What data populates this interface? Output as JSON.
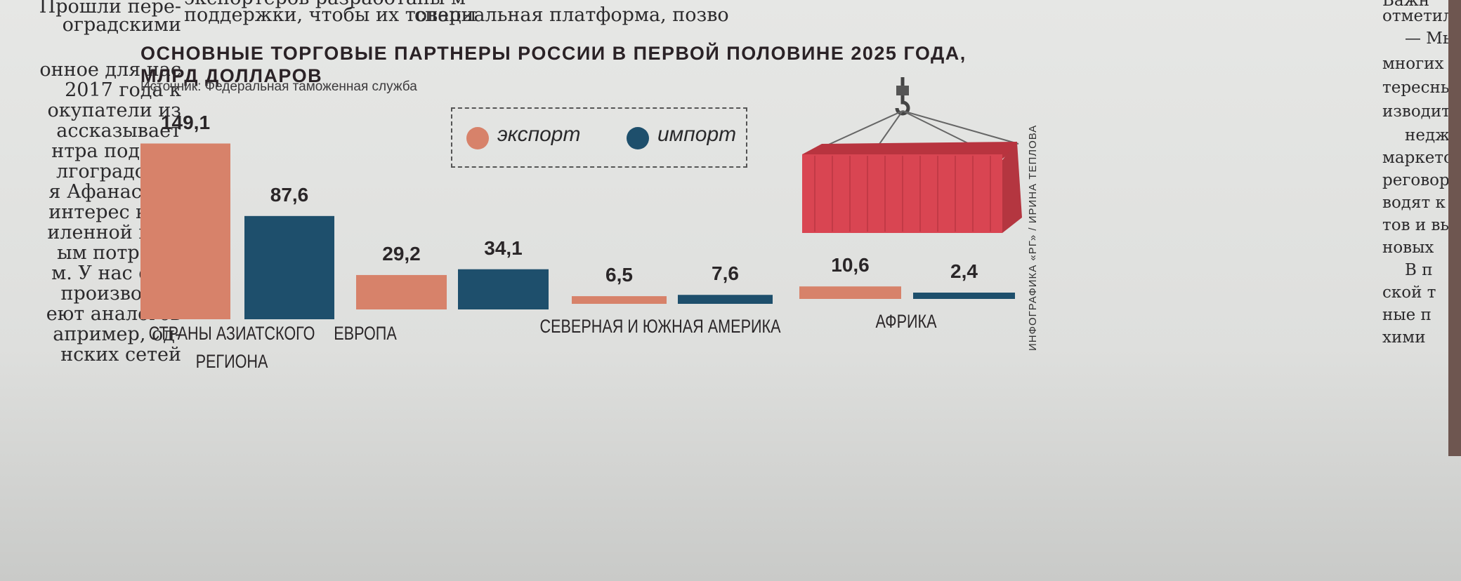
{
  "article_left_lines": [
    "Прошли пере-",
    "оградскими",
    "онное для нас",
    "2017 года к",
    "окупатели из",
    "ассказывает",
    "нтра поддер-",
    "лгоградской",
    "я Афанасова.",
    "интерес к аг-",
    "иленной про-",
    "ым потреби-",
    "м. У нас есть",
    "производст-",
    "еют аналогов",
    "апример, од-",
    "нских сетей"
  ],
  "article_top_lines": [
    "экспортеров разработаны м",
    "поддержки, чтобы их товары",
    "специальная платформа, позво"
  ],
  "article_right_lines": [
    "Важн",
    "отметил",
    "— Мы",
    "многих п",
    "тересны",
    "изводите",
    "неджер",
    "маркето",
    "реговор",
    "водят к",
    "тов и вы",
    "новых",
    "В п",
    "ской т",
    "ные п",
    "хими"
  ],
  "credit": "ИНФОГРАФИКА «РГ» / ИРИНА ТЕПЛОВА",
  "colors": {
    "export": "#d7826a",
    "import": "#1e4f6c",
    "container": "#d94552"
  },
  "chart_data": {
    "type": "bar",
    "title": "ОСНОВНЫЕ ТОРГОВЫЕ ПАРТНЕРЫ РОССИИ В ПЕРВОЙ ПОЛОВИНЕ 2025 ГОДА, МЛРД ДОЛЛАРОВ",
    "title_lines": [
      "ОСНОВНЫЕ ТОРГОВЫЕ ПАРТНЕРЫ РОССИИ В ПЕРВОЙ ПОЛОВИНЕ 2025 ГОДА,",
      "МЛРД ДОЛЛАРОВ"
    ],
    "source": "Источник: Федеральная таможенная служба",
    "categories": [
      "СТРАНЫ АЗИАТСКОГО РЕГИОНА",
      "ЕВРОПА",
      "СЕВЕРНАЯ И ЮЖНАЯ АМЕРИКА",
      "АФРИКА"
    ],
    "category_lines": [
      [
        "СТРАНЫ АЗИАТСКОГО",
        "РЕГИОНА"
      ],
      [
        "ЕВРОПА"
      ],
      [
        "СЕВЕРНАЯ И ЮЖНАЯ АМЕРИКА"
      ],
      [
        "АФРИКА"
      ]
    ],
    "series": [
      {
        "name": "экспорт",
        "values": [
          149.1,
          29.2,
          6.5,
          10.6
        ],
        "labels": [
          "149,1",
          "29,2",
          "6,5",
          "10,6"
        ]
      },
      {
        "name": "импорт",
        "values": [
          87.6,
          34.1,
          7.6,
          2.4
        ],
        "labels": [
          "87,6",
          "34,1",
          "7,6",
          "2,4"
        ]
      }
    ],
    "legend": "top-center",
    "ylim": [
      0,
      150
    ],
    "grid": false
  }
}
